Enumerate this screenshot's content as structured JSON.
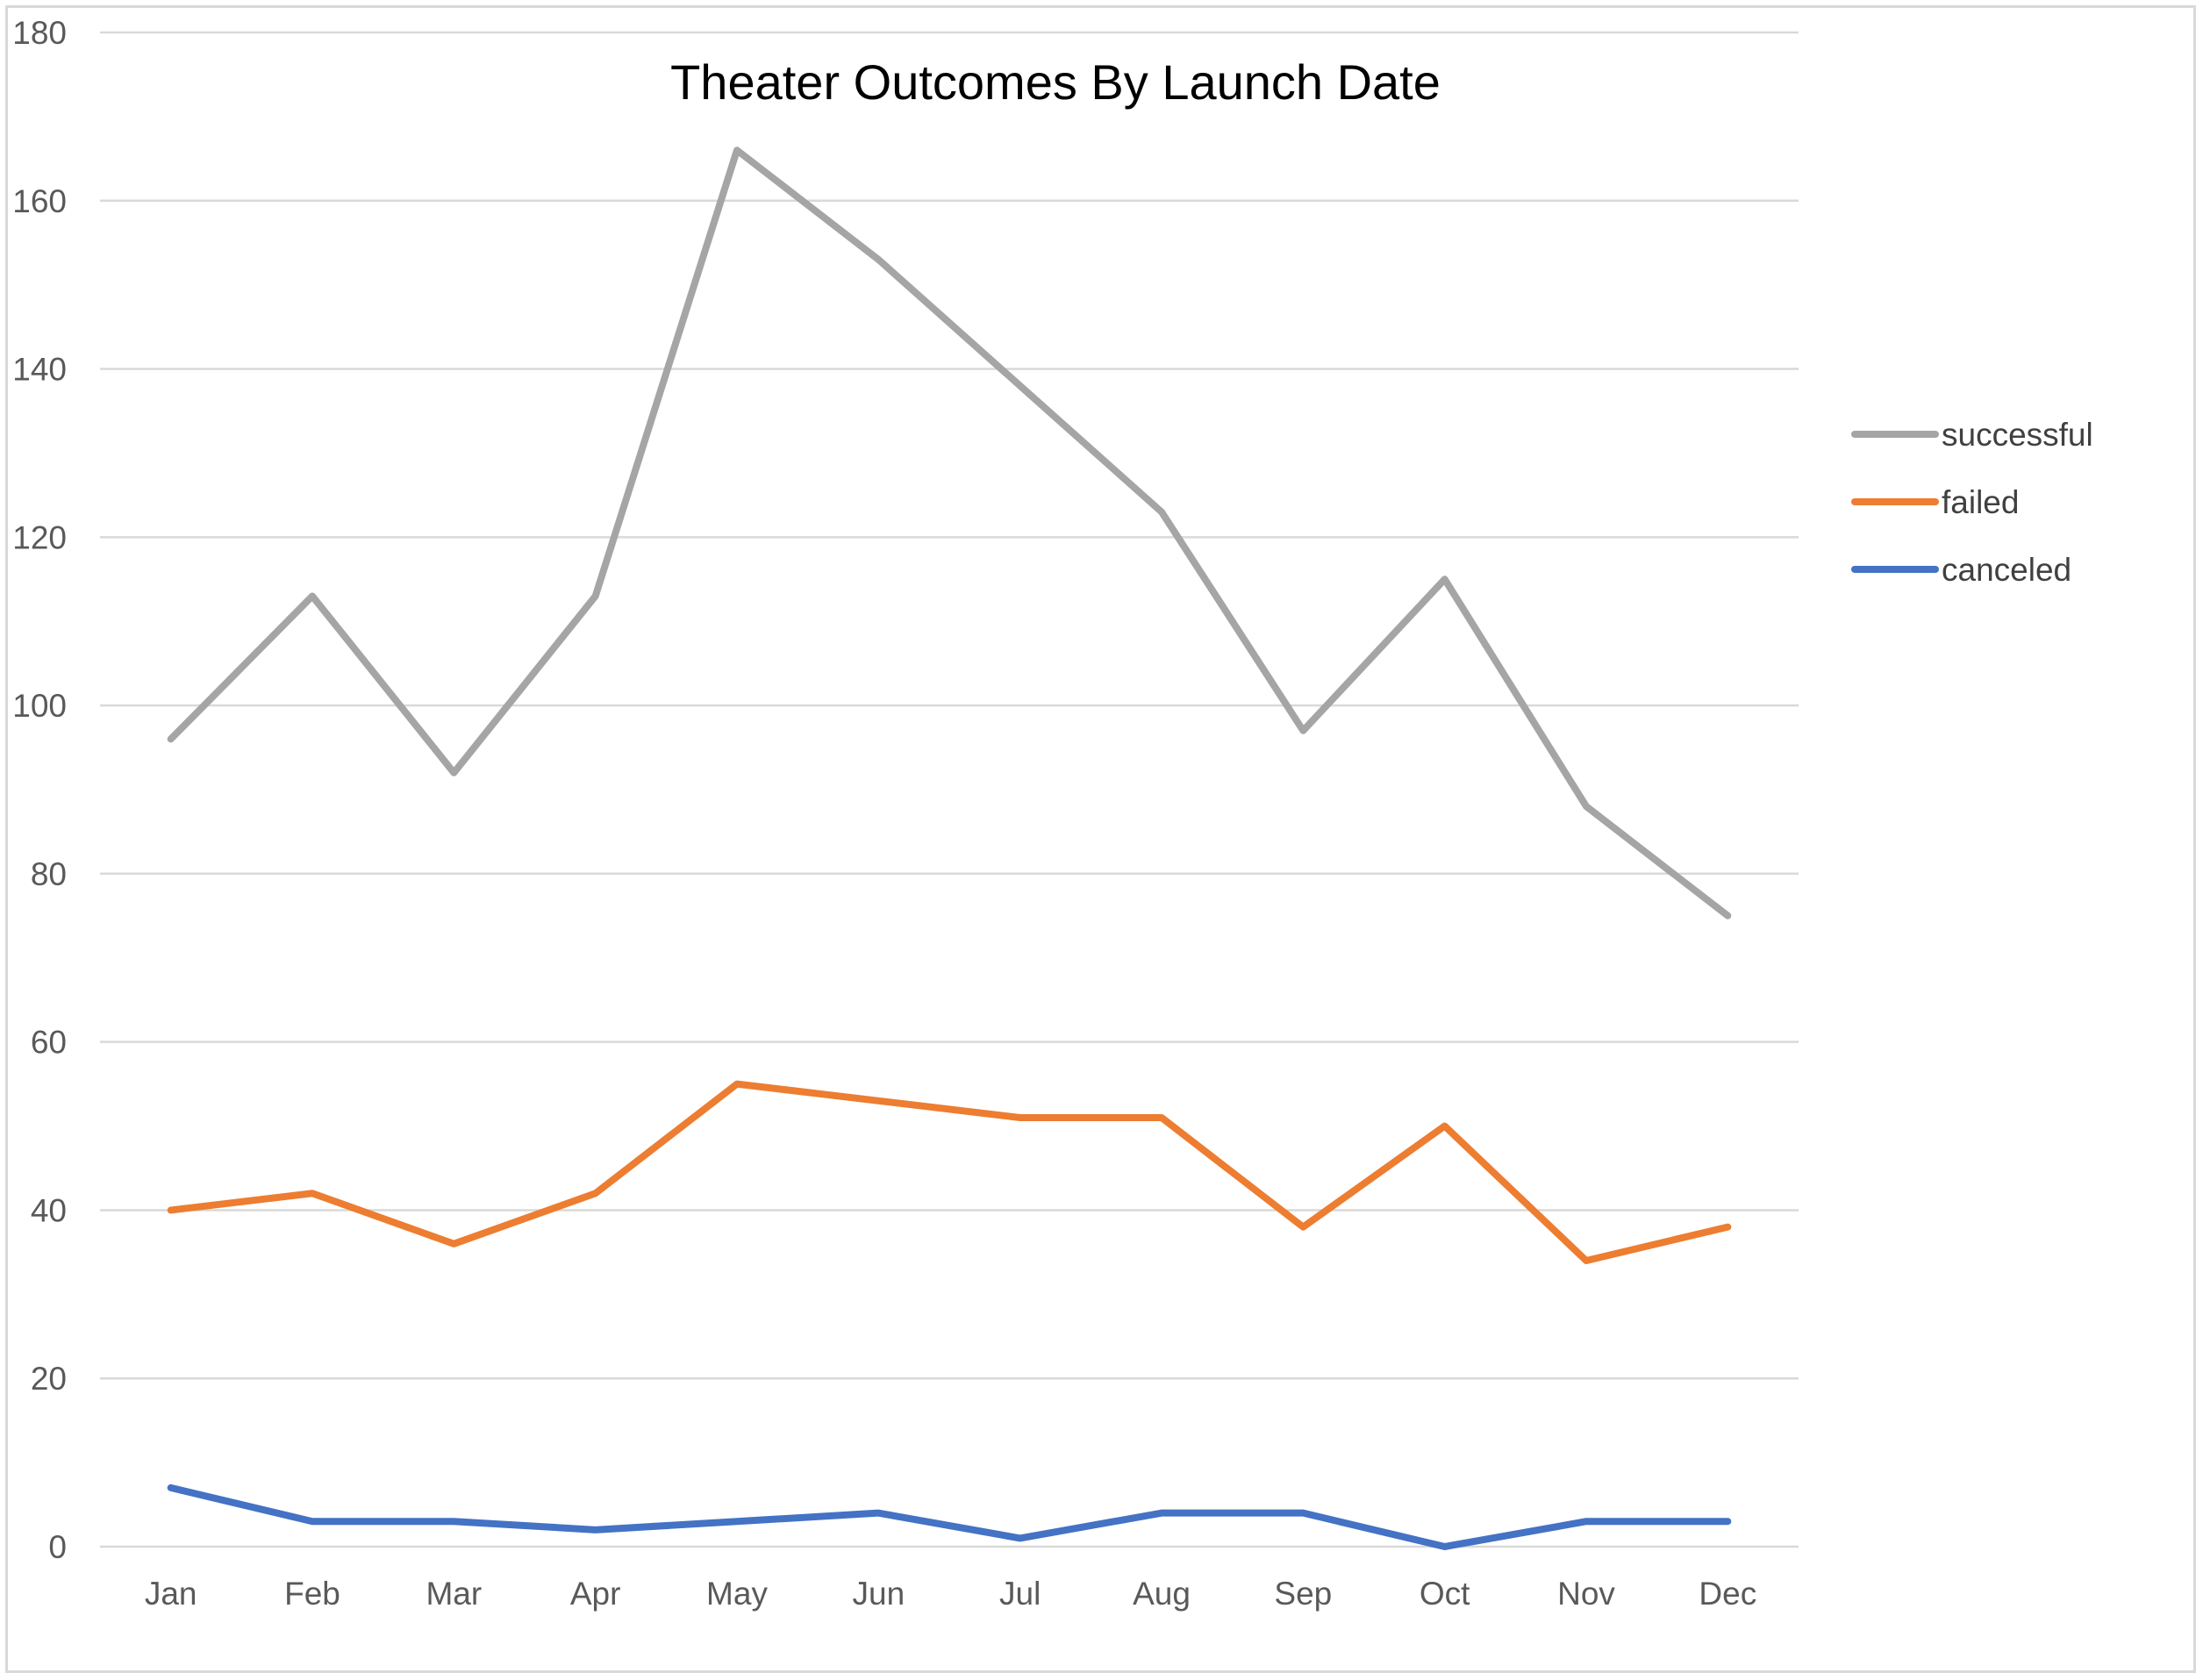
{
  "chart_data": {
    "type": "line",
    "title": "Theater Outcomes By Launch Date",
    "xlabel": "",
    "ylabel": "",
    "categories": [
      "Jan",
      "Feb",
      "Mar",
      "Apr",
      "May",
      "Jun",
      "Jul",
      "Aug",
      "Sep",
      "Oct",
      "Nov",
      "Dec"
    ],
    "ylim": [
      0,
      180
    ],
    "yticks": [
      0,
      20,
      40,
      60,
      80,
      100,
      120,
      140,
      160,
      180
    ],
    "grid": "horizontal",
    "legend_position": "right",
    "series": [
      {
        "name": "successful",
        "color": "#a5a5a5",
        "values": [
          96,
          113,
          92,
          113,
          166,
          153,
          138,
          123,
          97,
          115,
          88,
          75
        ]
      },
      {
        "name": "failed",
        "color": "#ed7d31",
        "values": [
          40,
          42,
          36,
          42,
          55,
          53,
          51,
          51,
          38,
          50,
          34,
          38
        ]
      },
      {
        "name": "canceled",
        "color": "#4472c4",
        "values": [
          7,
          3,
          3,
          2,
          3,
          4,
          1,
          4,
          4,
          0,
          3,
          3
        ]
      }
    ]
  }
}
